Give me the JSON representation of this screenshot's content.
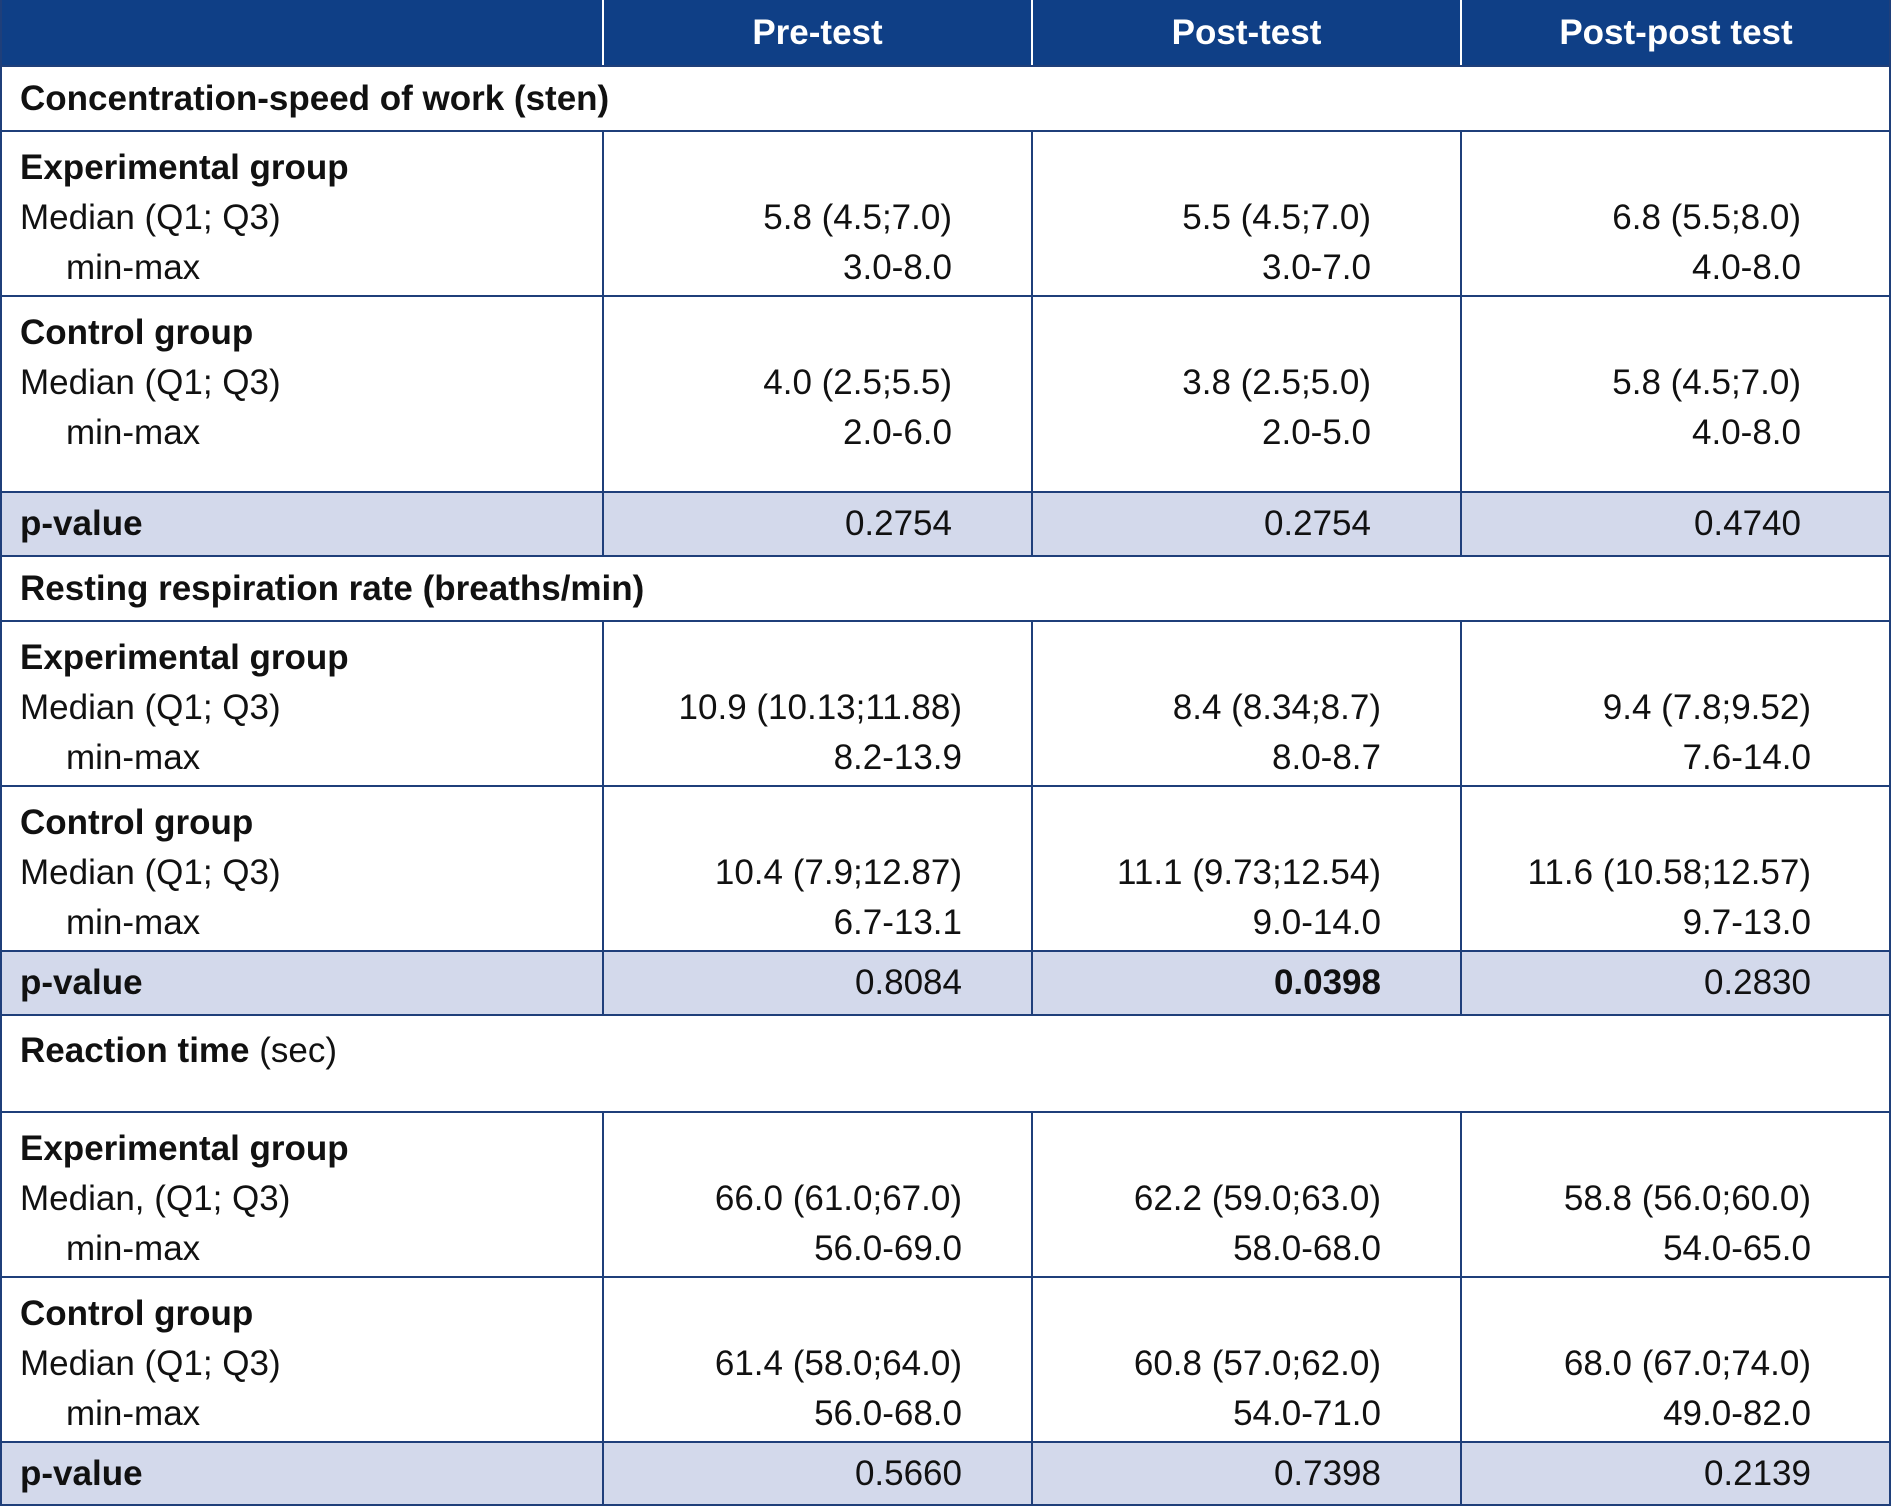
{
  "header": {
    "col0": "",
    "col1": "Pre-test",
    "col2": "Post-test",
    "col3": "Post-post test"
  },
  "sections": [
    {
      "title": "Concentration-speed of work (sten)",
      "experimental": {
        "label": "Experimental group",
        "median_label": "Median (Q1; Q3)",
        "minmax_label": "min-max",
        "median": [
          "5.8 (4.5;7.0)",
          "5.5 (4.5;7.0)",
          "6.8 (5.5;8.0)"
        ],
        "minmax": [
          "3.0-8.0",
          "3.0-7.0",
          "4.0-8.0"
        ]
      },
      "control": {
        "label": "Control group",
        "median_label": "Median (Q1; Q3)",
        "minmax_label": "min-max",
        "median": [
          "4.0 (2.5;5.5)",
          "3.8 (2.5;5.0)",
          "5.8 (4.5;7.0)"
        ],
        "minmax": [
          "2.0-6.0",
          "2.0-5.0",
          "4.0-8.0"
        ]
      },
      "pvalue": {
        "label": "p-value",
        "values": [
          "0.2754",
          "0.2754",
          "0.4740"
        ]
      }
    },
    {
      "title": "Resting respiration rate (breaths/min)",
      "experimental": {
        "label": "Experimental group",
        "median_label": "Median (Q1; Q3)",
        "minmax_label": "min-max",
        "median": [
          "10.9 (10.13;11.88)",
          "8.4 (8.34;8.7)",
          "9.4 (7.8;9.52)"
        ],
        "minmax": [
          "8.2-13.9",
          "8.0-8.7",
          "7.6-14.0"
        ]
      },
      "control": {
        "label": "Control group",
        "median_label": "Median (Q1; Q3)",
        "minmax_label": "min-max",
        "median": [
          "10.4 (7.9;12.87)",
          "11.1 (9.73;12.54)",
          "11.6 (10.58;12.57)"
        ],
        "minmax": [
          "6.7-13.1",
          "9.0-14.0",
          "9.7-13.0"
        ]
      },
      "pvalue": {
        "label": "p-value",
        "values": [
          "0.8084",
          "0.0398",
          "0.2830"
        ]
      }
    },
    {
      "title_bold": "Reaction time",
      "title_rest": " (sec)",
      "experimental": {
        "label": "Experimental group",
        "median_label": "Median, (Q1; Q3)",
        "minmax_label": "min-max",
        "median": [
          "66.0 (61.0;67.0)",
          "62.2 (59.0;63.0)",
          "58.8 (56.0;60.0)"
        ],
        "minmax": [
          "56.0-69.0",
          "58.0-68.0",
          "54.0-65.0"
        ]
      },
      "control": {
        "label": "Control group",
        "median_label": "Median (Q1; Q3)",
        "minmax_label": "min-max",
        "median": [
          "61.4 (58.0;64.0)",
          "60.8 (57.0;62.0)",
          "68.0 (67.0;74.0)"
        ],
        "minmax": [
          "56.0-68.0",
          "54.0-71.0",
          "49.0-82.0"
        ]
      },
      "pvalue": {
        "label": "p-value",
        "values": [
          "0.5660",
          "0.7398",
          "0.2139"
        ]
      }
    }
  ]
}
